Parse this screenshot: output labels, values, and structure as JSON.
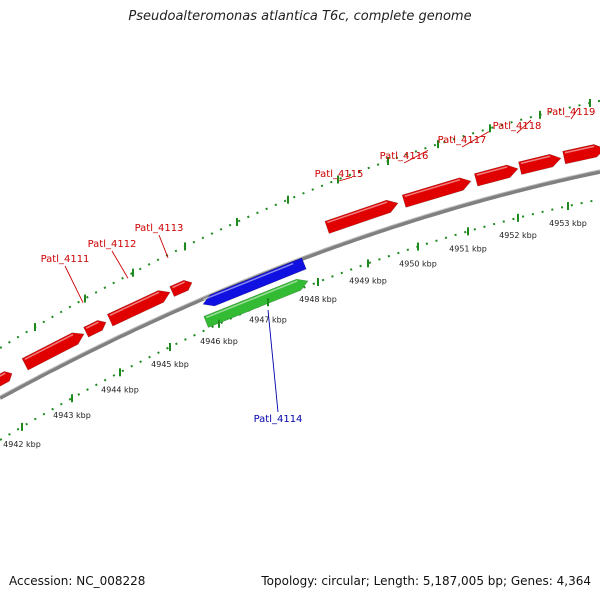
{
  "title": "Pseudoalteromonas atlantica T6c, complete genome",
  "footer": {
    "accession": "Accession: NC_008228",
    "stats": "Topology: circular; Length: 5,187,005 bp; Genes: 4,364"
  },
  "colors": {
    "forward_gene": "#e00000",
    "reverse_gene": "#1010e0",
    "green_feature": "#33bb33",
    "backbone": "#808080",
    "ticks": "#1e8a1e",
    "label_forward": "#cc0000",
    "label_reverse": "#0000aa"
  },
  "ticks": [
    {
      "label": "4942 kbp"
    },
    {
      "label": "4943 kbp"
    },
    {
      "label": "4944 kbp"
    },
    {
      "label": "4945 kbp"
    },
    {
      "label": "4946 kbp"
    },
    {
      "label": "4947 kbp"
    },
    {
      "label": "4948 kbp"
    },
    {
      "label": "4949 kbp"
    },
    {
      "label": "4950 kbp"
    },
    {
      "label": "4951 kbp"
    },
    {
      "label": "4952 kbp"
    },
    {
      "label": "4953 kbp"
    }
  ],
  "gene_labels": [
    {
      "name": "Patl_4111",
      "strand": "forward"
    },
    {
      "name": "Patl_4112",
      "strand": "forward"
    },
    {
      "name": "Patl_4113",
      "strand": "forward"
    },
    {
      "name": "Patl_4114",
      "strand": "reverse"
    },
    {
      "name": "Patl_4115",
      "strand": "forward"
    },
    {
      "name": "Patl_4116",
      "strand": "forward"
    },
    {
      "name": "Patl_4117",
      "strand": "forward"
    },
    {
      "name": "Patl_4118",
      "strand": "forward"
    },
    {
      "name": "Patl_4119",
      "strand": "forward"
    }
  ]
}
